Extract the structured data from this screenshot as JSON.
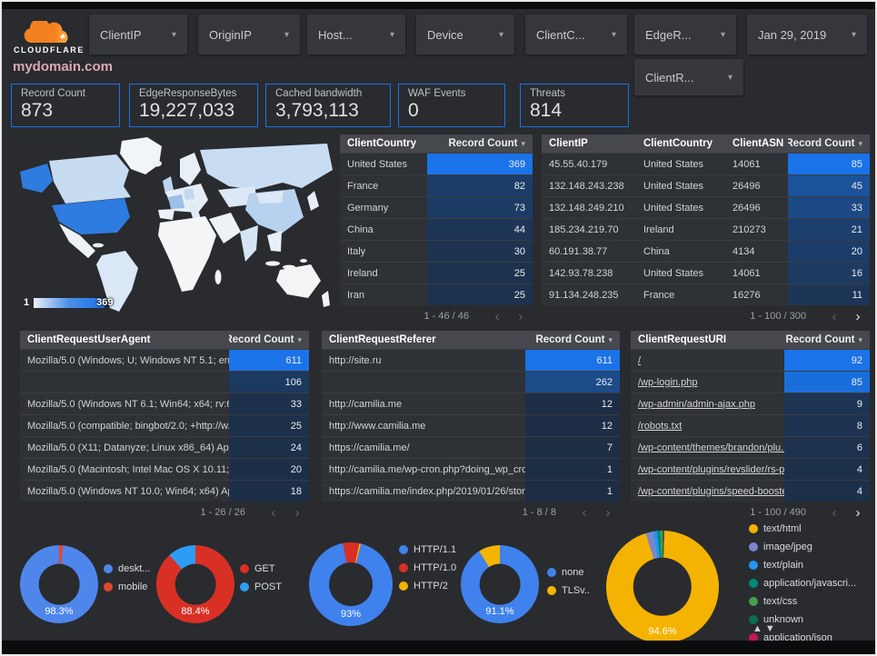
{
  "header": {
    "logo_text": "CLOUDFLARE",
    "domain": "mydomain.com",
    "filters": [
      {
        "label": "ClientIP"
      },
      {
        "label": "OriginIP"
      },
      {
        "label": "Host..."
      },
      {
        "label": "Device"
      },
      {
        "label": "ClientC..."
      },
      {
        "label": "EdgeR..."
      }
    ],
    "date_label": "Jan 29, 2019",
    "secondary_filter": "ClientR..."
  },
  "scorecards": [
    {
      "label": "Record Count",
      "value": "873"
    },
    {
      "label": "EdgeResponseBytes",
      "value": "19,227,033"
    },
    {
      "label": "Cached bandwidth",
      "value": "3,793,113"
    },
    {
      "label": "WAF Events",
      "value": "0"
    },
    {
      "label": "Threats",
      "value": "814"
    }
  ],
  "map": {
    "legend_min": "1",
    "legend_max": "369",
    "max_country": "United States"
  },
  "colors": {
    "accent": "#1a73e8",
    "heat_base": "#1d2d43",
    "heat_max": "#1a73e8"
  },
  "tables": [
    {
      "columns": [
        "ClientCountry",
        "Record Count"
      ],
      "rows": [
        [
          "United States",
          369
        ],
        [
          "France",
          82
        ],
        [
          "Germany",
          73
        ],
        [
          "China",
          44
        ],
        [
          "Italy",
          30
        ],
        [
          "Ireland",
          25
        ],
        [
          "Iran",
          25
        ]
      ],
      "max_count": 369,
      "pagination": "1 - 46 / 46",
      "next_enabled": false,
      "link_first_col": false
    },
    {
      "columns": [
        "ClientIP",
        "ClientCountry",
        "ClientASN",
        "Record Count"
      ],
      "rows": [
        [
          "45.55.40.179",
          "United States",
          "14061",
          85
        ],
        [
          "132.148.243.238",
          "United States",
          "26496",
          45
        ],
        [
          "132.148.249.210",
          "United States",
          "26496",
          33
        ],
        [
          "185.234.219.70",
          "Ireland",
          "210273",
          21
        ],
        [
          "60.191.38.77",
          "China",
          "4134",
          20
        ],
        [
          "142.93.78.238",
          "United States",
          "14061",
          16
        ],
        [
          "91.134.248.235",
          "France",
          "16276",
          11
        ]
      ],
      "max_count": 85,
      "pagination": "1 - 100 / 300",
      "next_enabled": true,
      "link_first_col": false
    },
    {
      "columns": [
        "ClientRequestUserAgent",
        "Record Count"
      ],
      "rows": [
        [
          "Mozilla/5.0 (Windows; U; Windows NT 5.1; en-U...",
          611
        ],
        [
          "",
          106
        ],
        [
          "Mozilla/5.0 (Windows NT 6.1; Win64; x64; rv:64...",
          33
        ],
        [
          "Mozilla/5.0 (compatible; bingbot/2.0; +http://w...",
          25
        ],
        [
          "Mozilla/5.0 (X11; Datanyze; Linux x86_64) Appl...",
          24
        ],
        [
          "Mozilla/5.0 (Macintosh; Intel Mac OS X 10.11; r...",
          20
        ],
        [
          "Mozilla/5.0 (Windows NT 10.0; Win64; x64) App...",
          18
        ]
      ],
      "max_count": 611,
      "pagination": "1 - 26 / 26",
      "next_enabled": false,
      "link_first_col": false
    },
    {
      "columns": [
        "ClientRequestReferer",
        "Record Count"
      ],
      "rows": [
        [
          "http://site.ru",
          611
        ],
        [
          "",
          262
        ],
        [
          "http://camilia.me",
          12
        ],
        [
          "http://www.camilia.me",
          12
        ],
        [
          "https://camilia.me/",
          7
        ],
        [
          "http://camilia.me/wp-cron.php?doing_wp_cron...",
          1
        ],
        [
          "https://camilia.me/index.php/2019/01/26/stor...",
          1
        ]
      ],
      "max_count": 611,
      "pagination": "1 - 8 / 8",
      "next_enabled": false,
      "link_first_col": false
    },
    {
      "columns": [
        "ClientRequestURI",
        "Record Count"
      ],
      "rows": [
        [
          "/",
          92
        ],
        [
          "/wp-login.php",
          85
        ],
        [
          "/wp-admin/admin-ajax.php",
          9
        ],
        [
          "/robots.txt",
          8
        ],
        [
          "/wp-content/themes/brandon/plu...",
          6
        ],
        [
          "/wp-content/plugins/revslider/rs-p...",
          4
        ],
        [
          "/wp-content/plugins/speed-booste...",
          4
        ]
      ],
      "max_count": 92,
      "pagination": "1 - 100 / 490",
      "next_enabled": true,
      "link_first_col": true
    }
  ],
  "donuts": [
    {
      "name": "device-type",
      "label": "98.3%",
      "from_deg": 6,
      "slices": [
        {
          "name": "deskt...",
          "value": 98.3,
          "color": "#4e86ec"
        },
        {
          "name": "mobile",
          "value": 1.7,
          "color": "#e0492f"
        }
      ]
    },
    {
      "name": "http-method",
      "label": "88.4%",
      "from_deg": 0,
      "slices": [
        {
          "name": "GET",
          "value": 88.4,
          "color": "#d93025"
        },
        {
          "name": "POST",
          "value": 11.6,
          "color": "#2d9cf4"
        }
      ]
    },
    {
      "name": "http-protocol",
      "label": "93%",
      "from_deg": 14,
      "slices": [
        {
          "name": "HTTP/1.1",
          "value": 93,
          "color": "#3f82ed"
        },
        {
          "name": "HTTP/1.0",
          "value": 6.4,
          "color": "#d93025"
        },
        {
          "name": "HTTP/2",
          "value": 0.6,
          "color": "#f4b400"
        }
      ]
    },
    {
      "name": "tls-version",
      "label": "91.1%",
      "from_deg": 0,
      "slices": [
        {
          "name": "none",
          "value": 91.1,
          "color": "#3f82ed"
        },
        {
          "name": "TLSv..",
          "value": 8.9,
          "color": "#f4b400"
        }
      ]
    },
    {
      "name": "content-type",
      "label": "94.6%",
      "from_deg": 2,
      "has_legend_pager": true,
      "slices": [
        {
          "name": "text/html",
          "value": 94.6,
          "color": "#f5b301"
        },
        {
          "name": "image/jpeg",
          "value": 2.2,
          "color": "#7986cb"
        },
        {
          "name": "text/plain",
          "value": 1.1,
          "color": "#2196f3"
        },
        {
          "name": "application/javascri...",
          "value": 0.9,
          "color": "#00897b"
        },
        {
          "name": "text/css",
          "value": 0.6,
          "color": "#43a047"
        },
        {
          "name": "unknown",
          "value": 0.4,
          "color": "#0b6e4f"
        },
        {
          "name": "application/json",
          "value": 0.2,
          "color": "#c2185b"
        }
      ]
    }
  ],
  "icons": {
    "legend_pager_up": "▲",
    "legend_pager_down": "▼",
    "sort_desc": "▾",
    "page_prev": "‹",
    "page_next": "›"
  }
}
